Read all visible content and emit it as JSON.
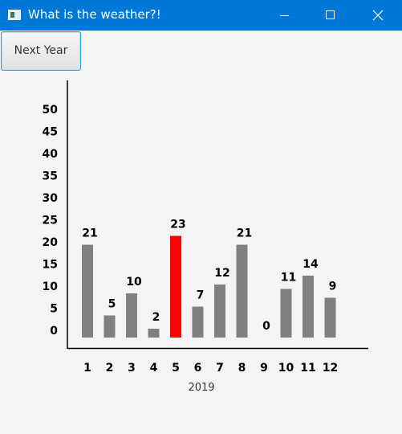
{
  "window": {
    "title": "What is the weather?!",
    "title_bar_color": "#0078d7",
    "icons": [
      "app-icon",
      "minimize-icon",
      "maximize-icon",
      "close-icon"
    ]
  },
  "toolbar": {
    "next_year_label": "Next Year"
  },
  "chart_data": {
    "type": "bar",
    "title": "",
    "xlabel": "2019",
    "ylabel": "",
    "categories": [
      "1",
      "2",
      "3",
      "4",
      "5",
      "6",
      "7",
      "8",
      "9",
      "10",
      "11",
      "12"
    ],
    "values": [
      21,
      5,
      10,
      2,
      23,
      7,
      12,
      21,
      0,
      11,
      14,
      9
    ],
    "ylim": [
      0,
      50
    ],
    "yticks": [
      "0",
      "5",
      "10",
      "15",
      "20",
      "25",
      "30",
      "35",
      "40",
      "45",
      "50"
    ],
    "grid": false,
    "legend": "none",
    "bar_color": "#808080",
    "highlight_color": "#ff0000",
    "highlight_category": "5"
  }
}
